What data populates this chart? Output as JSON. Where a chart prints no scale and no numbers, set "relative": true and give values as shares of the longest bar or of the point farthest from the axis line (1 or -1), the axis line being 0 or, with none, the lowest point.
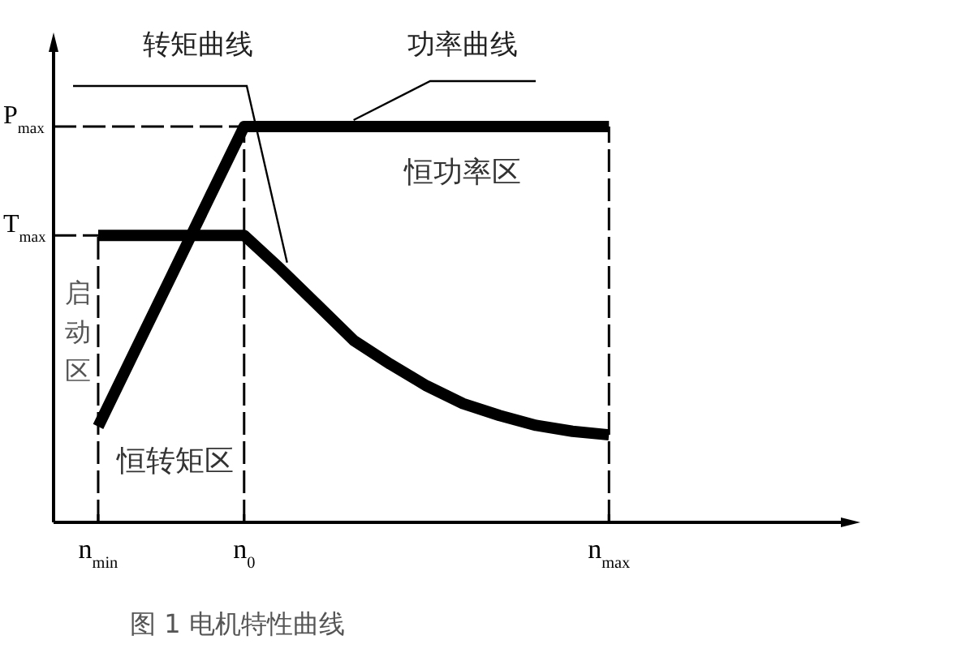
{
  "chart_data": {
    "type": "line",
    "relative": true,
    "categories": [
      null,
      "n$_{min}$",
      null,
      null,
      null,
      "n$_{0}$",
      null,
      null,
      null,
      null,
      null,
      null,
      null,
      null,
      null,
      "n$_{max}$",
      null,
      null,
      null,
      null,
      null,
      null
    ],
    "series": [
      {
        "name": "转矩曲线",
        "color": "#000000",
        "values": [
          null,
          0.725,
          0.725,
          0.725,
          0.725,
          0.725,
          0.64,
          0.55,
          0.46,
          0.4,
          0.345,
          0.3,
          0.27,
          0.245,
          0.23,
          0.221,
          null,
          null,
          null,
          null,
          null,
          null
        ]
      },
      {
        "name": "功率曲线",
        "color": "#000000",
        "values": [
          null,
          0.242,
          0.432,
          0.621,
          0.811,
          1,
          1,
          1,
          1,
          1,
          1,
          1,
          1,
          1,
          1,
          1,
          null,
          null,
          null,
          null,
          null,
          null
        ]
      }
    ],
    "ref_lines": [
      {
        "axis": "x",
        "value": "n$_{min}$",
        "line_style": "dashed",
        "color": "#000000"
      },
      {
        "axis": "x",
        "value": "n$_{0}$",
        "line_style": "dashed",
        "color": "#000000"
      },
      {
        "axis": "x",
        "value": "n$_{max}$",
        "line_style": "dashed",
        "color": "#000000"
      },
      {
        "axis": "y",
        "value": 1,
        "label": "P$_{max}$",
        "line_style": "dashed",
        "color": "#000000"
      },
      {
        "axis": "y",
        "value": 0.725,
        "label": "T$_{max}$",
        "line_style": "dashed",
        "color": "#000000"
      }
    ],
    "annotations": [
      "恒功率区",
      "启动区",
      "恒转矩区",
      "图 1 电机特性曲线"
    ],
    "grid": false,
    "legend": false,
    "marker": "none",
    "line_style": "solid"
  }
}
